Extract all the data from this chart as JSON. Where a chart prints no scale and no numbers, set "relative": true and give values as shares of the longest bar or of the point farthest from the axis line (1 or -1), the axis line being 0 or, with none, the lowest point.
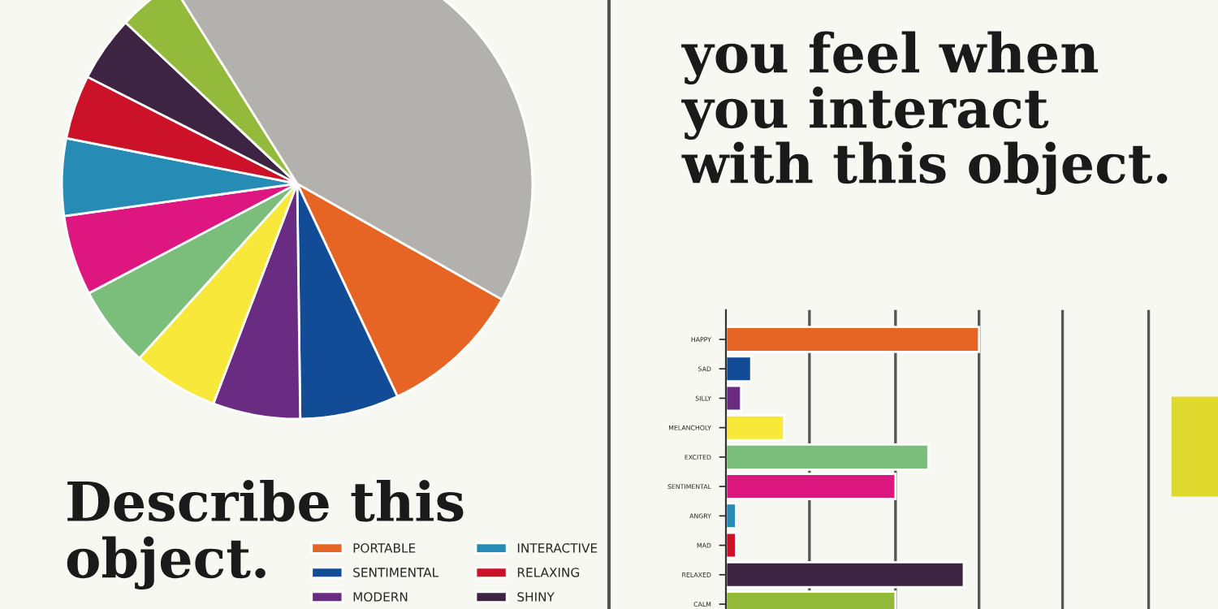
{
  "chart_data": [
    {
      "type": "pie",
      "title": "Describe this\nobject.",
      "categories": [
        "PORTABLE",
        "SENTIMENTAL",
        "MODERN",
        null,
        null,
        null,
        "INTERACTIVE",
        "RELAXING",
        "SHINY",
        null,
        null
      ],
      "values": [
        9.8,
        6.8,
        6.0,
        5.9,
        5.6,
        5.5,
        5.3,
        4.4,
        4.5,
        4.1,
        42.1
      ],
      "colors": [
        "#e66525",
        "#134c96",
        "#6a2b82",
        "#f7e83a",
        "#7bbd7b",
        "#dd177f",
        "#268bb5",
        "#cc1228",
        "#3c2442",
        "#93ba3a",
        "#b3b1ad"
      ],
      "legend": "bottom"
    },
    {
      "type": "bar",
      "orientation": "horizontal",
      "relative": true,
      "title": "you feel when\nyou interact\nwith this object.",
      "categories": [
        "HAPPY",
        "SAD",
        "SILLY",
        "MELANCHOLY",
        "EXCITED",
        "SENTIMENTAL",
        "ANGRY",
        "MAD",
        "RELAXED",
        "CALM"
      ],
      "values": [
        1,
        0.1,
        0.06,
        0.23,
        0.8,
        0.67,
        0.04,
        0.04,
        0.94,
        0.67
      ],
      "colors": [
        "#e66525",
        "#134c96",
        "#6a2b82",
        "#f7e83a",
        "#7bbd7b",
        "#dd177f",
        "#268bb5",
        "#cc1228",
        "#3c2442",
        "#93ba3a"
      ],
      "ref_lines": [
        {
          "axis": "x",
          "value": 0.33
        },
        {
          "axis": "x",
          "value": 0.67
        },
        {
          "axis": "x",
          "value": 1
        },
        {
          "axis": "x",
          "value": 1.33
        },
        {
          "axis": "x",
          "value": 1.67
        }
      ],
      "tick_labels": "y"
    }
  ]
}
